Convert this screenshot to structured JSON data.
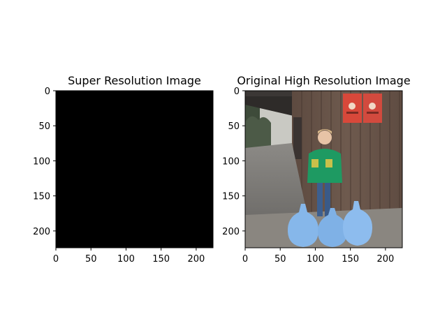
{
  "chart_data": [
    {
      "type": "image",
      "title": "Super Resolution Image",
      "xlim": [
        0,
        224
      ],
      "ylim": [
        224,
        0
      ],
      "x_ticks": [
        0,
        50,
        100,
        150,
        200
      ],
      "y_ticks": [
        0,
        50,
        100,
        150,
        200
      ],
      "x_tick_labels": [
        "0",
        "50",
        "100",
        "150",
        "200"
      ],
      "y_tick_labels": [
        "0",
        "50",
        "100",
        "150",
        "200"
      ],
      "image_content": "solid-black",
      "fill_color": "#000000"
    },
    {
      "type": "image",
      "title": "Original High Resolution Image",
      "xlim": [
        0,
        224
      ],
      "ylim": [
        224,
        0
      ],
      "x_ticks": [
        0,
        50,
        100,
        150,
        200
      ],
      "y_ticks": [
        0,
        50,
        100,
        150,
        200
      ],
      "x_tick_labels": [
        "0",
        "50",
        "100",
        "150",
        "200"
      ],
      "y_tick_labels": [
        "0",
        "50",
        "100",
        "150",
        "200"
      ],
      "image_content": "photo",
      "colors": {
        "wall": "#6b574c",
        "sky": "#c9c9c3",
        "trees": "#3e4b3a",
        "road": "#7d7b79",
        "gravel": "#8a8680",
        "jacket": "#1e9a62",
        "jeans": "#3d5f8f",
        "bags": "#86b7ea",
        "posters": "#d8483a"
      }
    }
  ]
}
